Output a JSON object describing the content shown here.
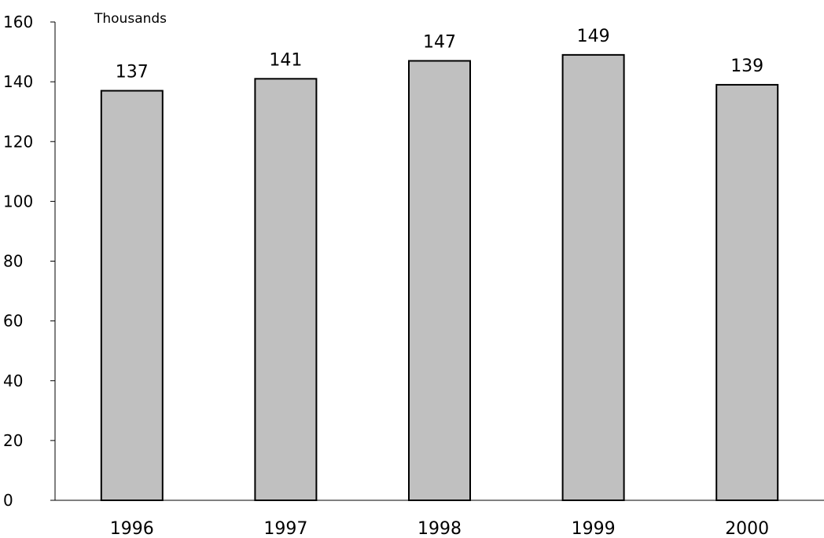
{
  "chart_data": {
    "type": "bar",
    "title": "",
    "ylabel": "Thousands",
    "xlabel": "",
    "categories": [
      "1996",
      "1997",
      "1998",
      "1999",
      "2000"
    ],
    "values": [
      137,
      141,
      147,
      149,
      139
    ],
    "data_labels": [
      "137",
      "141",
      "147",
      "149",
      "139"
    ],
    "ylim": [
      0,
      160
    ],
    "yticks": [
      0,
      20,
      40,
      60,
      80,
      100,
      120,
      140,
      160
    ],
    "grid": false,
    "legend": "none",
    "colors": {
      "bar_fill": "#c0c0c0",
      "bar_stroke": "#000000",
      "axis": "#000000"
    }
  }
}
